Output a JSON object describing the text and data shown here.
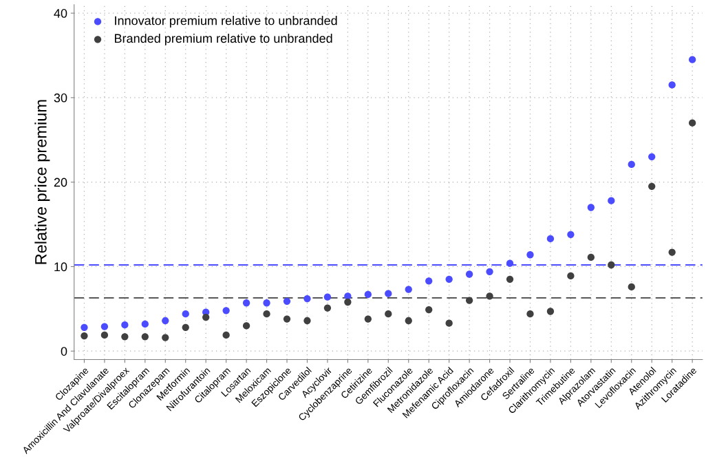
{
  "chart_data": {
    "type": "scatter",
    "ylabel": "Relative price premium",
    "categories": [
      "Clozapine",
      "Amoxicillin And Clavulanate",
      "Valproate/Divalproex",
      "Escitalopram",
      "Clonazepam",
      "Metformin",
      "Nitrofurantoin",
      "Citalopram",
      "Losartan",
      "Meloxicam",
      "Eszopiclone",
      "Carvedilol",
      "Acyclovir",
      "Cyclobenzaprine",
      "Cetirizine",
      "Gemfibrozil",
      "Fluconazole",
      "Metronidazole",
      "Mefenamic Acid",
      "Ciprofloxacin",
      "Amiodarone",
      "Cefadroxil",
      "Sertraline",
      "Clarithromycin",
      "Trimebutine",
      "Alprazolam",
      "Atorvastatin",
      "Levofloxacin",
      "Atenolol",
      "Azithromycin",
      "Loratadine"
    ],
    "series": [
      {
        "name": "Innovator premium relative to unbranded",
        "color": "#4b4bff",
        "values": [
          2.8,
          2.9,
          3.1,
          3.2,
          3.6,
          4.4,
          4.6,
          4.8,
          5.7,
          5.7,
          5.9,
          6.2,
          6.4,
          6.5,
          6.7,
          6.8,
          7.3,
          8.3,
          8.5,
          9.1,
          9.4,
          10.4,
          11.4,
          13.3,
          13.8,
          17.0,
          17.8,
          22.1,
          23.0,
          31.5,
          34.5
        ]
      },
      {
        "name": "Branded premium relative to unbranded",
        "color": "#404040",
        "values": [
          1.8,
          1.9,
          1.7,
          1.7,
          1.6,
          2.8,
          4.0,
          1.9,
          3.0,
          4.4,
          3.8,
          3.6,
          5.1,
          5.8,
          3.8,
          4.4,
          3.6,
          4.9,
          3.3,
          6.0,
          6.5,
          8.5,
          4.4,
          4.7,
          8.9,
          11.1,
          10.2,
          7.6,
          19.5,
          11.7,
          27.0
        ]
      }
    ],
    "ref_lines": [
      {
        "axis": "y",
        "value": 10.2,
        "color": "#4b4bff",
        "line_style": "dashed"
      },
      {
        "axis": "y",
        "value": 6.3,
        "color": "#404040",
        "line_style": "dashed"
      }
    ],
    "ylim": [
      -1,
      41
    ],
    "yticks": [
      0,
      10,
      20,
      30,
      40
    ],
    "grid": true,
    "legend": "top left",
    "marker": "circle"
  }
}
